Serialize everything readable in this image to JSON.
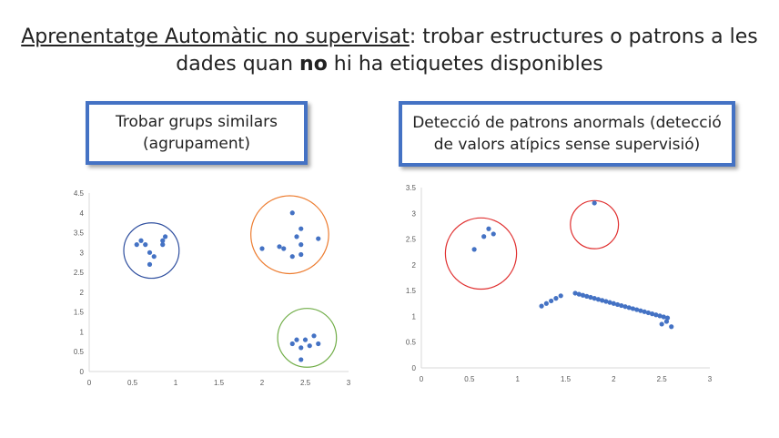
{
  "slide": {
    "title_underlined": "Aprenentatge Automàtic no supervisat",
    "title_rest": ": trobar estructures o patrons a les",
    "title_line2_pre": "dades quan ",
    "title_line2_bold": "no",
    "title_line2_post": " hi ha etiquetes disponibles"
  },
  "left_box": {
    "line1": "Trobar grups similars",
    "line2": "(agrupament)"
  },
  "right_box": {
    "line1": "Detecció de patrons anormals (detecció",
    "line2": "de valors atípics sense supervisió)"
  },
  "colors": {
    "point": "#4472c4",
    "box_border": "#4472c4",
    "circle_blue": "#2f4f9f",
    "circle_orange": "#ed7d31",
    "circle_green": "#70ad47",
    "circle_red": "#e03030"
  },
  "chart_data": [
    {
      "type": "scatter",
      "xlim": [
        0,
        3
      ],
      "ylim": [
        0,
        4.5
      ],
      "x_ticks": [
        "0",
        "0.5",
        "1",
        "1.5",
        "2",
        "2.5",
        "3"
      ],
      "y_ticks": [
        "0",
        "0.5",
        "1",
        "1.5",
        "2",
        "2.5",
        "3",
        "3.5",
        "4",
        "4.5"
      ],
      "x_tick_values": [
        0,
        0.5,
        1,
        1.5,
        2,
        2.5,
        3
      ],
      "y_tick_values": [
        0,
        0.5,
        1,
        1.5,
        2,
        2.5,
        3,
        3.5,
        4,
        4.5
      ],
      "grid": false,
      "points": [
        [
          0.55,
          3.2
        ],
        [
          0.6,
          3.3
        ],
        [
          0.65,
          3.2
        ],
        [
          0.7,
          3.0
        ],
        [
          0.75,
          2.9
        ],
        [
          0.7,
          2.7
        ],
        [
          0.85,
          3.2
        ],
        [
          0.85,
          3.3
        ],
        [
          0.88,
          3.4
        ],
        [
          2.0,
          3.1
        ],
        [
          2.2,
          3.15
        ],
        [
          2.25,
          3.1
        ],
        [
          2.35,
          4.0
        ],
        [
          2.45,
          3.6
        ],
        [
          2.45,
          3.2
        ],
        [
          2.35,
          2.9
        ],
        [
          2.45,
          2.95
        ],
        [
          2.65,
          3.35
        ],
        [
          2.4,
          3.4
        ],
        [
          2.35,
          0.7
        ],
        [
          2.4,
          0.8
        ],
        [
          2.45,
          0.6
        ],
        [
          2.5,
          0.8
        ],
        [
          2.55,
          0.65
        ],
        [
          2.6,
          0.9
        ],
        [
          2.65,
          0.7
        ],
        [
          2.45,
          0.3
        ]
      ],
      "clusters": [
        {
          "color": "#2f4f9f",
          "center": [
            0.72,
            3.05
          ],
          "radius_x": 0.32
        },
        {
          "color": "#ed7d31",
          "center": [
            2.32,
            3.45
          ],
          "radius_x": 0.45
        },
        {
          "color": "#70ad47",
          "center": [
            2.52,
            0.85
          ],
          "radius_x": 0.34
        }
      ]
    },
    {
      "type": "scatter",
      "xlim": [
        0,
        3
      ],
      "ylim": [
        0,
        3.5
      ],
      "x_ticks": [
        "0",
        "0.5",
        "1",
        "1.5",
        "2",
        "2.5",
        "3"
      ],
      "y_ticks": [
        "0",
        "0.5",
        "1",
        "1.5",
        "2",
        "2.5",
        "3",
        "3.5"
      ],
      "x_tick_values": [
        0,
        0.5,
        1,
        1.5,
        2,
        2.5,
        3
      ],
      "y_tick_values": [
        0,
        0.5,
        1,
        1.5,
        2,
        2.5,
        3,
        3.5
      ],
      "grid": false,
      "points": [
        [
          0.55,
          2.3
        ],
        [
          0.65,
          2.55
        ],
        [
          0.7,
          2.7
        ],
        [
          0.75,
          2.6
        ],
        [
          1.8,
          3.2
        ],
        [
          1.25,
          1.2
        ],
        [
          1.3,
          1.25
        ],
        [
          1.35,
          1.3
        ],
        [
          1.4,
          1.35
        ],
        [
          1.45,
          1.4
        ],
        [
          1.6,
          1.45
        ],
        [
          1.64,
          1.43
        ],
        [
          1.68,
          1.41
        ],
        [
          1.72,
          1.39
        ],
        [
          1.76,
          1.37
        ],
        [
          1.8,
          1.35
        ],
        [
          1.84,
          1.33
        ],
        [
          1.88,
          1.31
        ],
        [
          1.92,
          1.29
        ],
        [
          1.96,
          1.27
        ],
        [
          2.0,
          1.25
        ],
        [
          2.04,
          1.23
        ],
        [
          2.08,
          1.21
        ],
        [
          2.12,
          1.19
        ],
        [
          2.16,
          1.17
        ],
        [
          2.2,
          1.15
        ],
        [
          2.24,
          1.13
        ],
        [
          2.28,
          1.11
        ],
        [
          2.32,
          1.09
        ],
        [
          2.36,
          1.07
        ],
        [
          2.4,
          1.05
        ],
        [
          2.44,
          1.03
        ],
        [
          2.48,
          1.01
        ],
        [
          2.52,
          0.99
        ],
        [
          2.56,
          0.97
        ],
        [
          2.5,
          0.85
        ],
        [
          2.55,
          0.9
        ],
        [
          2.6,
          0.8
        ]
      ],
      "clusters": [
        {
          "color": "#e03030",
          "center": [
            0.62,
            2.22
          ],
          "radius_x": 0.37
        },
        {
          "color": "#e03030",
          "center": [
            1.8,
            2.78
          ],
          "radius_x": 0.25
        }
      ]
    }
  ]
}
